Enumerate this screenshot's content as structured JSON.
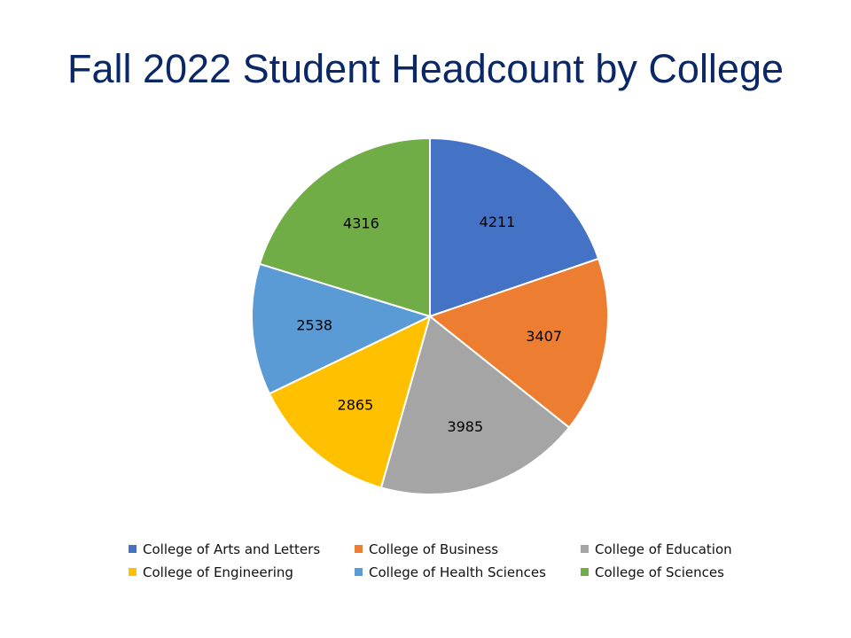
{
  "chart_data": {
    "type": "pie",
    "title": "Fall 2022 Student Headcount by College",
    "categories": [
      "College of Arts and Letters",
      "College of Business",
      "College of Education",
      "College of Engineering",
      "College of Health Sciences",
      "College of Sciences"
    ],
    "values": [
      4211,
      3407,
      3985,
      2865,
      2538,
      4316
    ],
    "colors": [
      "#4472c4",
      "#ed7d31",
      "#a5a5a5",
      "#ffc000",
      "#5b9bd5",
      "#70ad47"
    ],
    "data_labels": [
      "4211",
      "3407",
      "3985",
      "2865",
      "2538",
      "4316"
    ],
    "legend_position": "bottom",
    "start_angle": "top",
    "direction": "clockwise"
  }
}
